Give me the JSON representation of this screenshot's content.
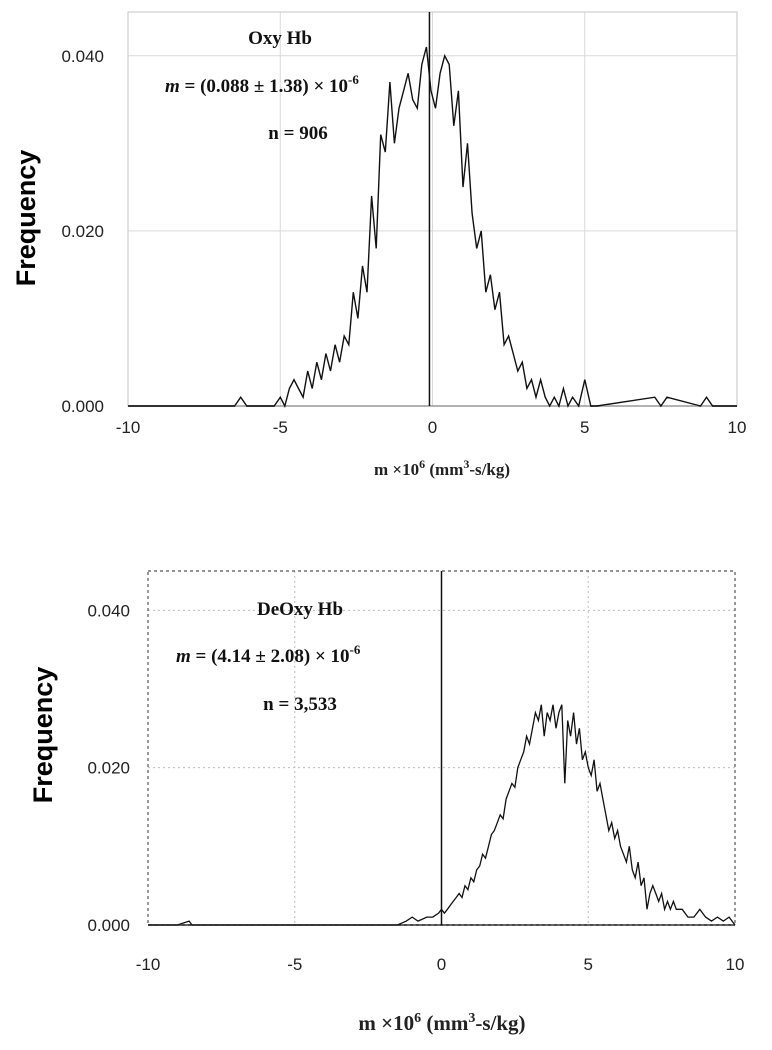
{
  "chart_data": [
    {
      "type": "line",
      "title": "",
      "ylabel": "Frequency",
      "xlabel": {
        "prefix": "m ×10",
        "exp": "6",
        "unit_a": " (mm",
        "unit_exp": "3",
        "unit_b": "-s/kg)"
      },
      "xlim": [
        -10,
        10
      ],
      "ylim": [
        0,
        0.045
      ],
      "x_ticks": [
        "-10",
        "-5",
        "0",
        "5",
        "10"
      ],
      "y_ticks": [
        "0.000",
        "0.020",
        "0.040"
      ],
      "grid": true,
      "grid_style": "solid",
      "vline_x": -0.1,
      "annotations": {
        "name": "Oxy Hb",
        "formula_m": "m",
        "formula_rest": " = (0.088 ± 1.38) × 10",
        "formula_exp": "-6",
        "n_text": "n = 906"
      },
      "series": [
        {
          "x": [
            -10,
            -6.7,
            -6.5,
            -6.3,
            -6.1,
            -5.9,
            -5.2,
            -5.0,
            -4.85,
            -4.7,
            -4.55,
            -4.4,
            -4.25,
            -4.1,
            -3.95,
            -3.8,
            -3.65,
            -3.5,
            -3.35,
            -3.2,
            -3.05,
            -2.9,
            -2.75,
            -2.6,
            -2.45,
            -2.3,
            -2.15,
            -2.0,
            -1.85,
            -1.7,
            -1.55,
            -1.4,
            -1.25,
            -1.1,
            -0.95,
            -0.8,
            -0.65,
            -0.5,
            -0.35,
            -0.2,
            -0.05,
            0.1,
            0.25,
            0.4,
            0.55,
            0.7,
            0.85,
            1.0,
            1.15,
            1.3,
            1.45,
            1.6,
            1.75,
            1.9,
            2.05,
            2.2,
            2.35,
            2.5,
            2.65,
            2.8,
            2.95,
            3.1,
            3.25,
            3.4,
            3.55,
            3.7,
            3.85,
            4.0,
            4.15,
            4.3,
            4.45,
            4.6,
            4.8,
            5.0,
            5.2,
            5.4,
            7.3,
            7.5,
            7.7,
            8.8,
            9.0,
            9.2,
            10
          ],
          "y": [
            0,
            0,
            0,
            0.001,
            0,
            0,
            0,
            0.001,
            0,
            0.002,
            0.003,
            0.002,
            0.001,
            0.004,
            0.002,
            0.005,
            0.003,
            0.006,
            0.004,
            0.007,
            0.005,
            0.008,
            0.007,
            0.013,
            0.01,
            0.016,
            0.013,
            0.024,
            0.018,
            0.031,
            0.029,
            0.037,
            0.03,
            0.034,
            0.036,
            0.038,
            0.035,
            0.034,
            0.039,
            0.041,
            0.036,
            0.034,
            0.038,
            0.04,
            0.039,
            0.032,
            0.036,
            0.025,
            0.03,
            0.022,
            0.018,
            0.02,
            0.013,
            0.015,
            0.011,
            0.013,
            0.007,
            0.008,
            0.006,
            0.004,
            0.005,
            0.002,
            0.003,
            0.001,
            0.003,
            0.001,
            0,
            0.001,
            0,
            0.002,
            0,
            0.001,
            0,
            0.003,
            0,
            0,
            0.001,
            0,
            0.001,
            0,
            0.001,
            0,
            0
          ]
        }
      ]
    },
    {
      "type": "line",
      "title": "",
      "ylabel": "Frequency",
      "xlabel": {
        "prefix": "m ×10",
        "exp": "6",
        "unit_a": " (mm",
        "unit_exp": "3",
        "unit_b": "-s/kg)"
      },
      "xlim": [
        -10,
        10
      ],
      "ylim": [
        0,
        0.045
      ],
      "x_ticks": [
        "-10",
        "-5",
        "0",
        "5",
        "10"
      ],
      "y_ticks": [
        "0.000",
        "0.020",
        "0.040"
      ],
      "grid": true,
      "grid_style": "dotted",
      "vline_x": 0,
      "annotations": {
        "name": "DeOxy Hb",
        "formula_m": "m",
        "formula_rest": " = (4.14 ± 2.08) × 10",
        "formula_exp": "-6",
        "n_text": "n = 3,533"
      },
      "series": [
        {
          "x": [
            -10,
            -9.0,
            -8.6,
            -8.5,
            -8.0,
            -7.0,
            -6.6,
            -6.0,
            -5.5,
            -5.0,
            -4.5,
            -4.0,
            -3.5,
            -3.0,
            -2.5,
            -2.0,
            -1.5,
            -1.2,
            -1.0,
            -0.8,
            -0.5,
            -0.3,
            -0.1,
            0.0,
            0.1,
            0.2,
            0.3,
            0.4,
            0.5,
            0.6,
            0.7,
            0.8,
            0.9,
            1.0,
            1.1,
            1.2,
            1.3,
            1.4,
            1.5,
            1.6,
            1.7,
            1.8,
            1.9,
            2.0,
            2.1,
            2.2,
            2.3,
            2.4,
            2.5,
            2.6,
            2.7,
            2.8,
            2.9,
            3.0,
            3.1,
            3.2,
            3.3,
            3.4,
            3.5,
            3.6,
            3.7,
            3.8,
            3.9,
            4.0,
            4.1,
            4.2,
            4.3,
            4.4,
            4.5,
            4.6,
            4.7,
            4.8,
            4.9,
            5.0,
            5.1,
            5.2,
            5.3,
            5.4,
            5.5,
            5.6,
            5.7,
            5.8,
            5.9,
            6.0,
            6.1,
            6.2,
            6.3,
            6.4,
            6.5,
            6.6,
            6.7,
            6.8,
            6.9,
            7.0,
            7.1,
            7.2,
            7.3,
            7.4,
            7.5,
            7.6,
            7.7,
            7.8,
            7.9,
            8.0,
            8.2,
            8.4,
            8.6,
            8.8,
            9.0,
            9.2,
            9.4,
            9.6,
            9.8,
            10.0
          ],
          "y": [
            0,
            0,
            0.0005,
            0,
            0,
            0,
            0,
            0,
            0,
            0,
            0,
            0,
            0,
            0,
            0,
            0,
            0,
            0.0005,
            0.001,
            0.0005,
            0.001,
            0.001,
            0.0015,
            0.002,
            0.0015,
            0.002,
            0.0025,
            0.003,
            0.0035,
            0.004,
            0.0035,
            0.005,
            0.0045,
            0.006,
            0.0055,
            0.007,
            0.0075,
            0.009,
            0.0085,
            0.01,
            0.0115,
            0.012,
            0.013,
            0.014,
            0.0135,
            0.016,
            0.017,
            0.018,
            0.0175,
            0.02,
            0.021,
            0.022,
            0.024,
            0.023,
            0.025,
            0.027,
            0.026,
            0.028,
            0.024,
            0.027,
            0.026,
            0.028,
            0.025,
            0.027,
            0.028,
            0.018,
            0.026,
            0.024,
            0.027,
            0.023,
            0.025,
            0.021,
            0.022,
            0.02,
            0.019,
            0.021,
            0.017,
            0.018,
            0.016,
            0.014,
            0.012,
            0.013,
            0.011,
            0.012,
            0.01,
            0.009,
            0.008,
            0.01,
            0.007,
            0.006,
            0.008,
            0.005,
            0.006,
            0.002,
            0.004,
            0.005,
            0.004,
            0.003,
            0.004,
            0.002,
            0.003,
            0.002,
            0.003,
            0.002,
            0.002,
            0.001,
            0.001,
            0.002,
            0.001,
            0.0005,
            0.001,
            0.0005,
            0.001,
            0
          ]
        }
      ]
    }
  ]
}
